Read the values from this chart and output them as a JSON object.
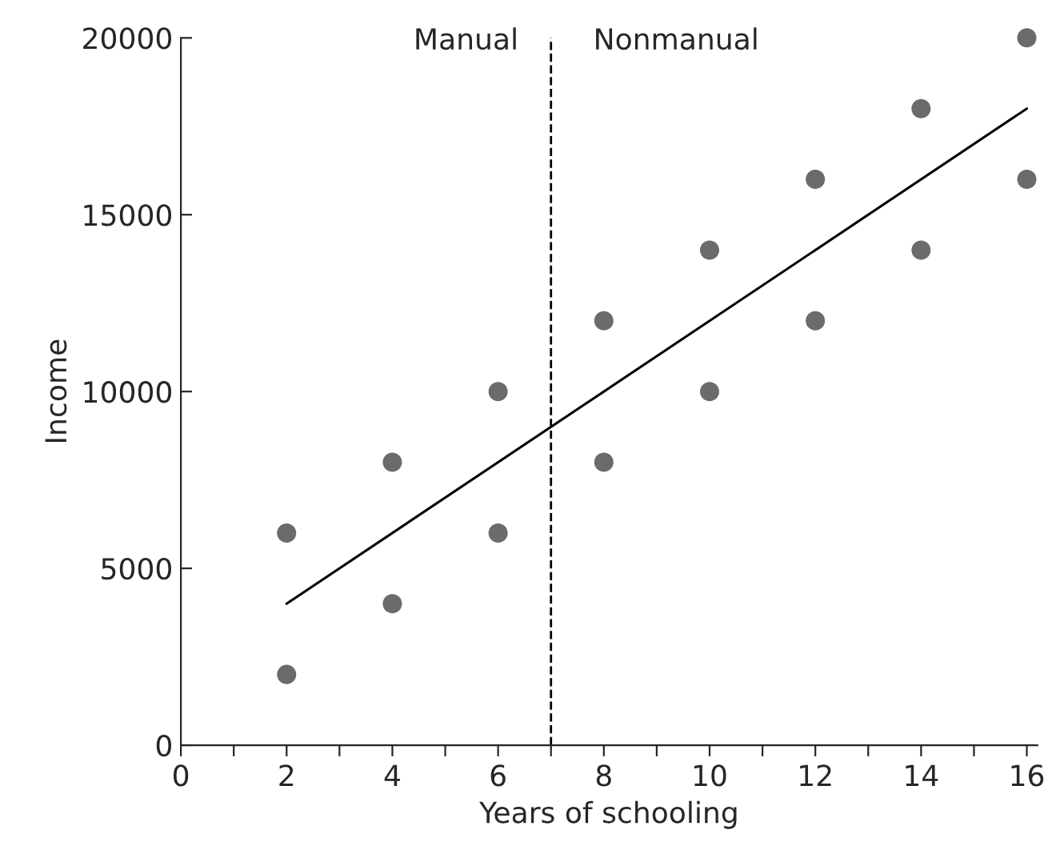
{
  "chart_data": {
    "type": "scatter",
    "xlabel": "Years of schooling",
    "ylabel": "Income",
    "series": [
      {
        "marker": "circle",
        "color": "#6b6b6b",
        "x": [
          2,
          2,
          4,
          4,
          6,
          6,
          8,
          8,
          10,
          10,
          12,
          12,
          14,
          14,
          16,
          16
        ],
        "values": [
          6000,
          2000,
          8000,
          4000,
          10000,
          6000,
          12000,
          8000,
          14000,
          10000,
          16000,
          12000,
          18000,
          14000,
          20000,
          16000
        ]
      },
      {
        "type": "line",
        "color": "#000000",
        "x": [
          2,
          16
        ],
        "values": [
          4000,
          18000
        ]
      }
    ],
    "xlim": [
      0,
      16.2
    ],
    "ylim": [
      0,
      20000
    ],
    "xticks": [
      0,
      {
        "value": 1,
        "label": null
      },
      2,
      {
        "value": 3,
        "label": null
      },
      4,
      {
        "value": 5,
        "label": null
      },
      6,
      {
        "value": 7,
        "label": null
      },
      8,
      {
        "value": 9,
        "label": null
      },
      10,
      {
        "value": 11,
        "label": null
      },
      12,
      {
        "value": 13,
        "label": null
      },
      14,
      {
        "value": 15,
        "label": null
      },
      16
    ],
    "yticks": [
      0,
      5000,
      10000,
      15000,
      20000
    ],
    "ref_lines": [
      {
        "axis": "x",
        "value": 7,
        "line_style": "dashed",
        "color": "#000000"
      }
    ],
    "annotations": [
      "Manual",
      "Nonmanual"
    ],
    "grid": false,
    "legend": false
  }
}
